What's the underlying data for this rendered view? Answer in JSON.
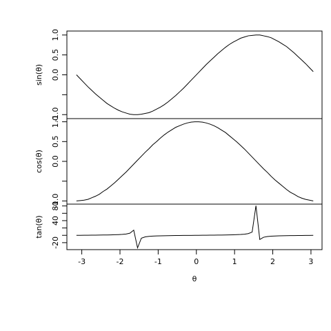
{
  "chart_data": [
    {
      "type": "line",
      "ylabel": "sin(θ)",
      "x": [
        -3.14,
        -3.04,
        -2.94,
        -2.84,
        -2.74,
        -2.64,
        -2.54,
        -2.44,
        -2.34,
        -2.24,
        -2.14,
        -2.04,
        -1.94,
        -1.84,
        -1.74,
        -1.64,
        -1.54,
        -1.44,
        -1.34,
        -1.24,
        -1.14,
        -1.04,
        -0.94,
        -0.84,
        -0.74,
        -0.64,
        -0.54,
        -0.44,
        -0.34,
        -0.24,
        -0.14,
        -0.04,
        0.06,
        0.16,
        0.26,
        0.36,
        0.46,
        0.56,
        0.66,
        0.76,
        0.86,
        0.96,
        1.06,
        1.16,
        1.26,
        1.36,
        1.46,
        1.56,
        1.66,
        1.76,
        1.86,
        1.96,
        2.06,
        2.16,
        2.26,
        2.36,
        2.46,
        2.56,
        2.66,
        2.76,
        2.86,
        2.96,
        3.06
      ],
      "values": [
        0,
        -0.1,
        -0.2,
        -0.3,
        -0.39,
        -0.48,
        -0.56,
        -0.64,
        -0.72,
        -0.78,
        -0.84,
        -0.89,
        -0.93,
        -0.96,
        -0.99,
        -1,
        -1,
        -0.99,
        -0.97,
        -0.95,
        -0.91,
        -0.86,
        -0.81,
        -0.75,
        -0.68,
        -0.6,
        -0.52,
        -0.43,
        -0.34,
        -0.24,
        -0.14,
        -0.04,
        0.06,
        0.16,
        0.26,
        0.35,
        0.44,
        0.53,
        0.61,
        0.69,
        0.76,
        0.82,
        0.87,
        0.92,
        0.95,
        0.98,
        0.99,
        1,
        1,
        0.98,
        0.96,
        0.93,
        0.88,
        0.83,
        0.77,
        0.71,
        0.63,
        0.55,
        0.46,
        0.37,
        0.28,
        0.18,
        0.08
      ],
      "color": "#000000",
      "xlim": [
        -3.39,
        3.29
      ],
      "ylim": [
        -1.1,
        1.1
      ],
      "yticks": [
        {
          "value": -1,
          "label": "-1.0"
        },
        -0.5,
        {
          "value": 0,
          "label": "0.0"
        },
        0.5,
        {
          "value": 1,
          "label": "1.0"
        }
      ]
    },
    {
      "type": "line",
      "ylabel": "cos(θ)",
      "x": [
        -3.14,
        -3.04,
        -2.94,
        -2.84,
        -2.74,
        -2.64,
        -2.54,
        -2.44,
        -2.34,
        -2.24,
        -2.14,
        -2.04,
        -1.94,
        -1.84,
        -1.74,
        -1.64,
        -1.54,
        -1.44,
        -1.34,
        -1.24,
        -1.14,
        -1.04,
        -0.94,
        -0.84,
        -0.74,
        -0.64,
        -0.54,
        -0.44,
        -0.34,
        -0.24,
        -0.14,
        -0.04,
        0.06,
        0.16,
        0.26,
        0.36,
        0.46,
        0.56,
        0.66,
        0.76,
        0.86,
        0.96,
        1.06,
        1.16,
        1.26,
        1.36,
        1.46,
        1.56,
        1.66,
        1.76,
        1.86,
        1.96,
        2.06,
        2.16,
        2.26,
        2.36,
        2.46,
        2.56,
        2.66,
        2.76,
        2.86,
        2.96,
        3.06
      ],
      "values": [
        -1,
        -0.99,
        -0.98,
        -0.96,
        -0.92,
        -0.88,
        -0.83,
        -0.76,
        -0.7,
        -0.62,
        -0.54,
        -0.45,
        -0.36,
        -0.27,
        -0.17,
        -0.07,
        0.03,
        0.13,
        0.23,
        0.32,
        0.42,
        0.5,
        0.59,
        0.67,
        0.74,
        0.8,
        0.86,
        0.9,
        0.94,
        0.97,
        0.99,
        1,
        1,
        0.99,
        0.97,
        0.94,
        0.9,
        0.85,
        0.79,
        0.73,
        0.65,
        0.57,
        0.49,
        0.4,
        0.31,
        0.21,
        0.11,
        0.01,
        -0.09,
        -0.19,
        -0.28,
        -0.38,
        -0.47,
        -0.55,
        -0.63,
        -0.71,
        -0.78,
        -0.83,
        -0.89,
        -0.93,
        -0.96,
        -0.98,
        -1
      ],
      "color": "#000000",
      "xlim": [
        -3.39,
        3.29
      ],
      "ylim": [
        -1.08,
        1.08
      ],
      "yticks": [
        {
          "value": -1,
          "label": "-1.0"
        },
        -0.5,
        {
          "value": 0,
          "label": "0.0"
        },
        0.5,
        {
          "value": 1,
          "label": "1.0"
        }
      ]
    },
    {
      "type": "line",
      "ylabel": "tan(θ)",
      "xlabel": "θ",
      "x": [
        -3.14,
        -3.04,
        -2.94,
        -2.84,
        -2.74,
        -2.64,
        -2.54,
        -2.44,
        -2.34,
        -2.24,
        -2.14,
        -2.04,
        -1.94,
        -1.84,
        -1.74,
        -1.64,
        -1.54,
        -1.44,
        -1.34,
        -1.24,
        -1.14,
        -1.04,
        -0.94,
        -0.84,
        -0.74,
        -0.64,
        -0.54,
        -0.44,
        -0.34,
        -0.24,
        -0.14,
        -0.04,
        0.06,
        0.16,
        0.26,
        0.36,
        0.46,
        0.56,
        0.66,
        0.76,
        0.86,
        0.96,
        1.06,
        1.16,
        1.26,
        1.36,
        1.46,
        1.56,
        1.66,
        1.76,
        1.86,
        1.96,
        2.06,
        2.16,
        2.26,
        2.36,
        2.46,
        2.56,
        2.66,
        2.76,
        2.86,
        2.96,
        3.06
      ],
      "values": [
        0,
        0.1,
        0.2,
        0.31,
        0.42,
        0.55,
        0.68,
        0.84,
        1.03,
        1.26,
        1.56,
        1.96,
        2.57,
        3.6,
        5.8,
        14.1,
        -34.23,
        -7.7,
        -4.29,
        -2.93,
        -2.19,
        -1.71,
        -1.37,
        -1.12,
        -0.92,
        -0.75,
        -0.6,
        -0.47,
        -0.36,
        -0.25,
        -0.14,
        -0.04,
        0.06,
        0.16,
        0.26,
        0.37,
        0.49,
        0.62,
        0.77,
        0.95,
        1.16,
        1.42,
        1.78,
        2.29,
        3.1,
        4.64,
        8.86,
        80.71,
        -11.38,
        -5.27,
        -3.38,
        -2.45,
        -1.89,
        -1.5,
        -1.22,
        -1,
        -0.81,
        -0.66,
        -0.52,
        -0.4,
        -0.29,
        -0.19,
        -0.08
      ],
      "color": "#000000",
      "xlim": [
        -3.39,
        3.29
      ],
      "ylim": [
        -39,
        85
      ],
      "yticks": [
        -20,
        0,
        20,
        40,
        60,
        80
      ],
      "xticks": [
        -3,
        -2,
        -1,
        0,
        1,
        2,
        3
      ]
    }
  ]
}
